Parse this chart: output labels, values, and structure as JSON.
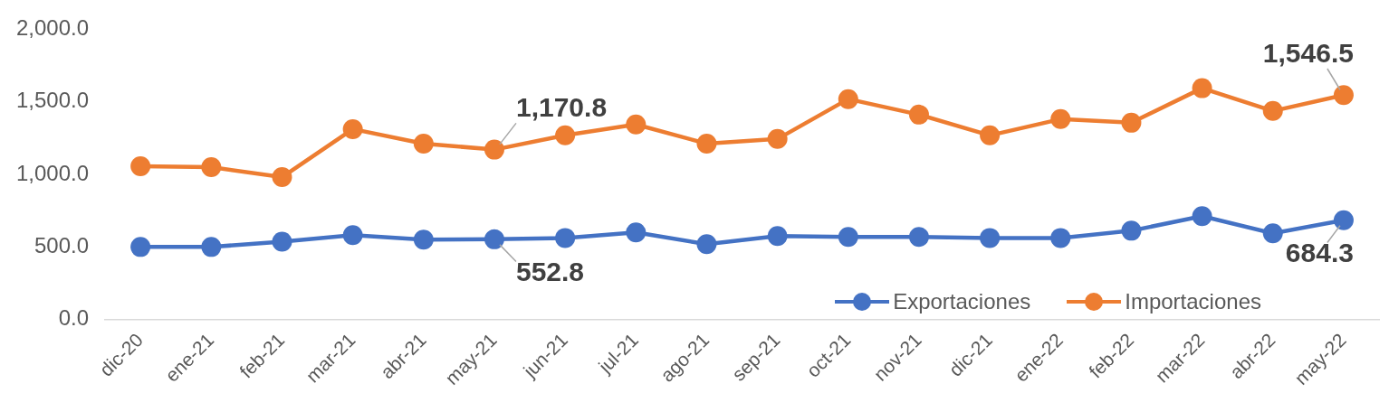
{
  "chart_data": {
    "type": "line",
    "categories": [
      "dic-20",
      "ene-21",
      "feb-21",
      "mar-21",
      "abr-21",
      "may-21",
      "jun-21",
      "jul-21",
      "ago-21",
      "sep-21",
      "oct-21",
      "nov-21",
      "dic-21",
      "ene-22",
      "feb-22",
      "mar-22",
      "abr-22",
      "may-22"
    ],
    "series": [
      {
        "name": "Exportaciones",
        "color": "#4472c4",
        "values": [
          500,
          500,
          537,
          581,
          550,
          552.8,
          562,
          600,
          519,
          575,
          569,
          569,
          562,
          562,
          612,
          712,
          594,
          684.3
        ],
        "value_labels": [
          null,
          null,
          null,
          null,
          null,
          "552.8",
          null,
          null,
          null,
          null,
          null,
          null,
          null,
          null,
          null,
          null,
          null,
          "684.3"
        ]
      },
      {
        "name": "Importaciones",
        "color": "#ed7d31",
        "values": [
          1056,
          1050,
          981,
          1312,
          1212,
          1170.8,
          1269,
          1344,
          1212,
          1244,
          1519,
          1412,
          1269,
          1381,
          1356,
          1594,
          1437,
          1546.5
        ],
        "value_labels": [
          null,
          null,
          null,
          null,
          null,
          "1,170.8",
          null,
          null,
          null,
          null,
          null,
          null,
          null,
          null,
          null,
          null,
          null,
          "1,546.5"
        ]
      }
    ],
    "ylim": [
      0,
      2000
    ],
    "yticks": [
      {
        "value": 0,
        "label": "0.0"
      },
      {
        "value": 500,
        "label": "500.0"
      },
      {
        "value": 1000,
        "label": "1,000.0"
      },
      {
        "value": 1500,
        "label": "1,500.0"
      },
      {
        "value": 2000,
        "label": "2,000.0"
      }
    ],
    "grid": false,
    "legend": "bottom right",
    "marker": "circle",
    "line_style": "solid"
  }
}
